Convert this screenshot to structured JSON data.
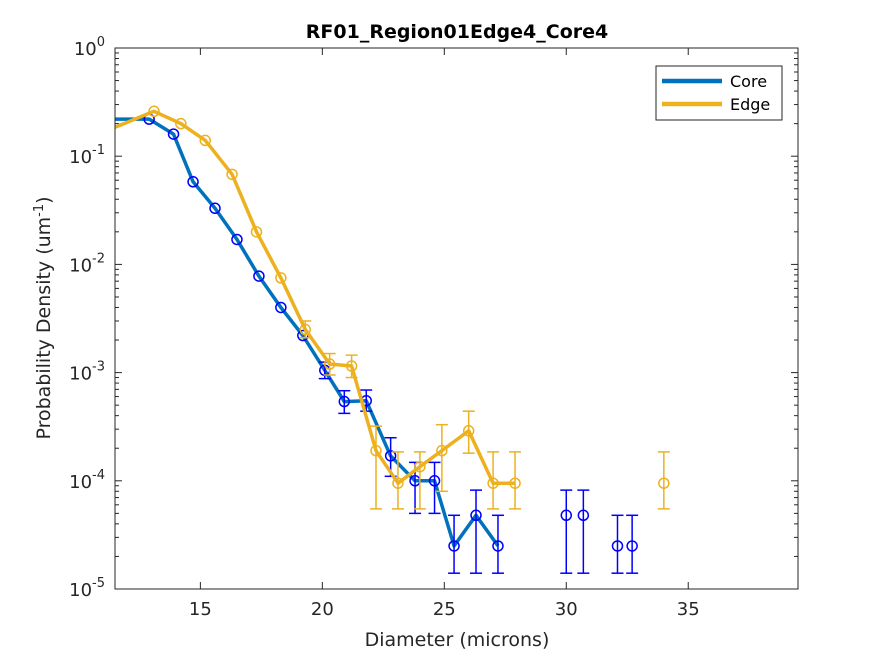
{
  "chart_data": {
    "type": "line",
    "title": "RF01_Region01Edge4_Core4",
    "xlabel": "Diameter (microns)",
    "ylabel": "Probability Density (um",
    "ylabel_sup": "-1",
    "ylabel_tail": ")",
    "xscale": "linear",
    "yscale": "log",
    "xlim": [
      11.5,
      39.5
    ],
    "ylim": [
      1e-05,
      1
    ],
    "xticks": [
      15,
      20,
      25,
      30,
      35
    ],
    "xtick_labels": [
      "15",
      "20",
      "25",
      "30",
      "35"
    ],
    "yticks": [
      1e-05,
      0.0001,
      0.001,
      0.01,
      0.1,
      1
    ],
    "ytick_labels": [
      {
        "base": "10",
        "exp": "-5"
      },
      {
        "base": "10",
        "exp": "-4"
      },
      {
        "base": "10",
        "exp": "-3"
      },
      {
        "base": "10",
        "exp": "-2"
      },
      {
        "base": "10",
        "exp": "-1"
      },
      {
        "base": "10",
        "exp": "0"
      }
    ],
    "grid": false,
    "box": true,
    "legend_position": "top-right",
    "series": [
      {
        "name": "Core",
        "line_color": "#0072BD",
        "marker_color": "#0000FF",
        "x": [
          11.5,
          12.9,
          13.9,
          14.7,
          15.6,
          16.5,
          17.4,
          18.3,
          19.2,
          20.1,
          20.9,
          21.8,
          22.8,
          23.8,
          24.6,
          25.4,
          26.3,
          27.2,
          30.0,
          30.7,
          32.1,
          32.7
        ],
        "y": [
          0.22,
          0.22,
          0.16,
          0.058,
          0.033,
          0.017,
          0.0078,
          0.004,
          0.0022,
          0.00105,
          0.00054,
          0.00055,
          0.00017,
          0.0001,
          0.0001,
          2.5e-05,
          4.8e-05,
          2.5e-05,
          4.8e-05,
          4.8e-05,
          2.5e-05,
          2.5e-05
        ],
        "line_points": 18,
        "errors": [
          null,
          null,
          null,
          null,
          null,
          null,
          null,
          null,
          null,
          [
            0.00088,
            0.00125
          ],
          [
            0.00042,
            0.00068
          ],
          [
            0.00044,
            0.00069
          ],
          [
            0.00011,
            0.00025
          ],
          [
            5e-05,
            0.000148
          ],
          [
            5e-05,
            0.000148
          ],
          [
            1.4e-05,
            4.8e-05
          ],
          [
            1.4e-05,
            8.2e-05
          ],
          [
            1.4e-05,
            4.8e-05
          ],
          [
            1.4e-05,
            8.2e-05
          ],
          [
            1.4e-05,
            8.2e-05
          ],
          [
            1.4e-05,
            4.8e-05
          ],
          [
            1.4e-05,
            4.8e-05
          ]
        ]
      },
      {
        "name": "Edge",
        "line_color": "#EDB120",
        "marker_color": "#EDB120",
        "x": [
          11.5,
          13.1,
          14.2,
          15.2,
          16.3,
          17.3,
          18.3,
          19.3,
          20.3,
          21.2,
          22.2,
          23.1,
          24.0,
          24.9,
          26.0,
          27.0,
          27.9,
          34.0
        ],
        "y": [
          0.185,
          0.26,
          0.2,
          0.14,
          0.068,
          0.02,
          0.0075,
          0.0025,
          0.0012,
          0.00115,
          0.00019,
          9.5e-05,
          0.000135,
          0.00019,
          0.00029,
          9.5e-05,
          9.5e-05,
          9.5e-05
        ],
        "line_points": 17,
        "errors": [
          null,
          null,
          null,
          null,
          null,
          null,
          null,
          [
            0.0021,
            0.003
          ],
          [
            0.00095,
            0.0015
          ],
          [
            0.0009,
            0.00145
          ],
          [
            5.5e-05,
            0.00032
          ],
          [
            5.5e-05,
            0.000185
          ],
          [
            5.5e-05,
            0.000185
          ],
          [
            8e-05,
            0.00033
          ],
          [
            0.00018,
            0.00044
          ],
          [
            5.5e-05,
            0.000185
          ],
          [
            5.5e-05,
            0.000185
          ],
          [
            5.5e-05,
            0.000185
          ]
        ]
      }
    ]
  }
}
